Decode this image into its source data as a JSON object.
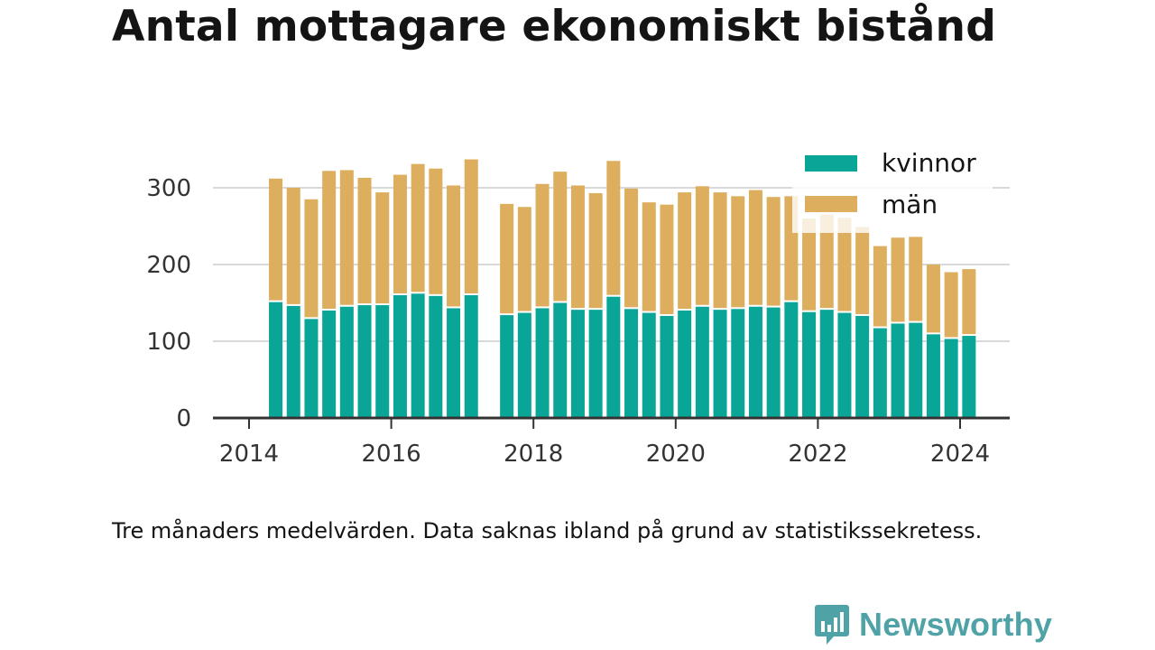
{
  "colors": {
    "kvinnor": "#09a597",
    "man": "#dcae5d",
    "axis": "#333333",
    "grid": "#d9d9d9",
    "brand": "#4fa3a6"
  },
  "title": "Antal mottagare ekonomiskt bistånd",
  "note": "Tre månaders medelvärden. Data saknas ibland på grund av statistikssekretess.",
  "brand": {
    "name": "Newsworthy",
    "icon": "bar-chart-speech-bubble-icon"
  },
  "chart_data": {
    "type": "bar",
    "stacked": true,
    "xlabel": "",
    "ylabel": "",
    "ylim": [
      0,
      350
    ],
    "xlim": [
      2013.5,
      2024.7
    ],
    "yticks": [
      0,
      100,
      200,
      300
    ],
    "xticks": [
      2014,
      2016,
      2018,
      2020,
      2022,
      2024
    ],
    "grid": "horizontal",
    "legend_position": "top-right",
    "x": [
      2014.375,
      2014.625,
      2014.875,
      2015.125,
      2015.375,
      2015.625,
      2015.875,
      2016.125,
      2016.375,
      2016.625,
      2016.875,
      2017.125,
      2017.625,
      2017.875,
      2018.125,
      2018.375,
      2018.625,
      2018.875,
      2019.125,
      2019.375,
      2019.625,
      2019.875,
      2020.125,
      2020.375,
      2020.625,
      2020.875,
      2021.125,
      2021.375,
      2021.625,
      2021.875,
      2022.125,
      2022.375,
      2022.625,
      2022.875,
      2023.125,
      2023.375,
      2023.625,
      2023.875,
      2024.125
    ],
    "series": [
      {
        "name": "kvinnor",
        "values": [
          151,
          146,
          129,
          140,
          145,
          147,
          147,
          160,
          162,
          159,
          143,
          160,
          134,
          137,
          143,
          150,
          141,
          141,
          158,
          142,
          137,
          133,
          140,
          145,
          141,
          142,
          145,
          144,
          151,
          138,
          141,
          137,
          133,
          117,
          123,
          124,
          109,
          103,
          107
        ]
      },
      {
        "name": "män",
        "values": [
          161,
          154,
          156,
          182,
          178,
          166,
          147,
          157,
          169,
          166,
          160,
          177,
          145,
          138,
          162,
          171,
          162,
          152,
          177,
          157,
          144,
          145,
          154,
          157,
          153,
          147,
          152,
          144,
          138,
          122,
          124,
          124,
          116,
          107,
          112,
          112,
          91,
          87,
          87
        ]
      }
    ]
  }
}
